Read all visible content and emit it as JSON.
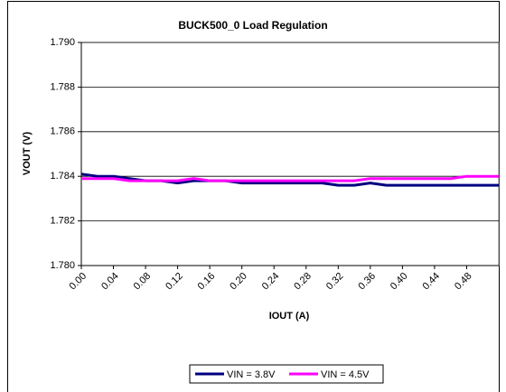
{
  "chart_data": {
    "type": "line",
    "title": "BUCK500_0 Load Regulation",
    "xlabel": "IOUT (A)",
    "ylabel": "VOUT (V)",
    "x": [
      0,
      0.02,
      0.04,
      0.06,
      0.08,
      0.1,
      0.12,
      0.14,
      0.16,
      0.18,
      0.2,
      0.22,
      0.24,
      0.26,
      0.28,
      0.3,
      0.32,
      0.34,
      0.36,
      0.38,
      0.4,
      0.42,
      0.44,
      0.46,
      0.48,
      0.5,
      0.52
    ],
    "series": [
      {
        "name": "VIN = 3.8V",
        "color": "#000080",
        "values": [
          1.7841,
          1.784,
          1.784,
          1.7839,
          1.7838,
          1.7838,
          1.7837,
          1.7838,
          1.7838,
          1.7838,
          1.7837,
          1.7837,
          1.7837,
          1.7837,
          1.7837,
          1.7837,
          1.7836,
          1.7836,
          1.7837,
          1.7836,
          1.7836,
          1.7836,
          1.7836,
          1.7836,
          1.7836,
          1.7836,
          1.7836
        ]
      },
      {
        "name": "VIN = 4.5V",
        "color": "#ff00ff",
        "values": [
          1.7839,
          1.7839,
          1.7839,
          1.7838,
          1.7838,
          1.7838,
          1.7838,
          1.7839,
          1.7838,
          1.7838,
          1.7838,
          1.7838,
          1.7838,
          1.7838,
          1.7838,
          1.7838,
          1.7838,
          1.7838,
          1.7839,
          1.7839,
          1.7839,
          1.7839,
          1.7839,
          1.7839,
          1.784,
          1.784,
          1.784
        ]
      }
    ],
    "xlim": [
      0,
      0.52
    ],
    "xticks": [
      {
        "value": 0,
        "label": "0.00"
      },
      0.04,
      0.08,
      0.12,
      0.16,
      {
        "value": 0.2,
        "label": "0.20"
      },
      0.24,
      0.28,
      0.32,
      0.36,
      {
        "value": 0.4,
        "label": "0.40"
      },
      0.44,
      0.48
    ],
    "ylim": [
      1.78,
      1.79
    ],
    "yticks": [
      {
        "value": 1.78,
        "label": "1.780"
      },
      1.782,
      1.784,
      1.786,
      1.788,
      {
        "value": 1.79,
        "label": "1.790"
      }
    ],
    "grid": true,
    "legend": "bottom"
  }
}
